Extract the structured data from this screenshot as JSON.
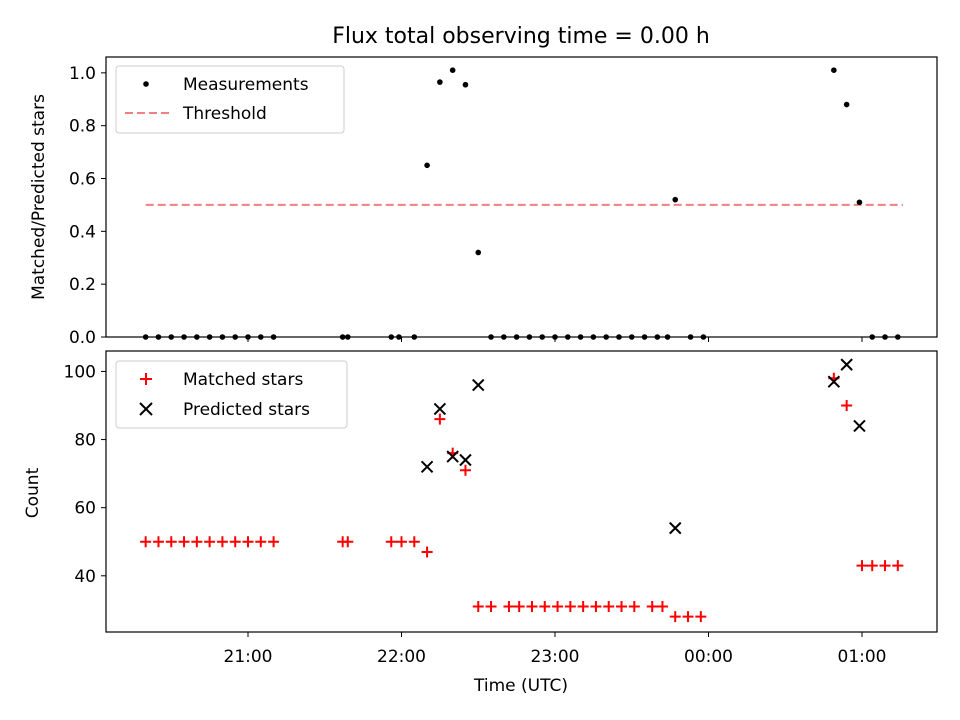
{
  "title": "Flux total observing time = 0.00 h",
  "colors": {
    "measurement": "#000000",
    "threshold": "#f08080",
    "matched": "#ff0000",
    "predicted": "#000000"
  },
  "chart_data": [
    {
      "type": "scatter",
      "ylabel": "Matched/Predicted stars",
      "ylim": [
        0,
        1.06
      ],
      "yticks": [
        "0.0",
        "0.2",
        "0.4",
        "0.6",
        "0.8",
        "1.0"
      ],
      "ytick_values": [
        0,
        0.2,
        0.4,
        0.6,
        0.8,
        1.0
      ],
      "legend": {
        "placement": "upper-left",
        "entries": [
          "Measurements",
          "Threshold"
        ]
      },
      "threshold": {
        "value": 0.5,
        "x_range": [
          "20:20",
          "01:16"
        ]
      },
      "series": [
        {
          "name": "Measurements",
          "points": [
            [
              "20:20",
              0
            ],
            [
              "20:25",
              0
            ],
            [
              "20:30",
              0
            ],
            [
              "20:35",
              0
            ],
            [
              "20:40",
              0
            ],
            [
              "20:45",
              0
            ],
            [
              "20:50",
              0
            ],
            [
              "20:55",
              0
            ],
            [
              "21:00",
              0
            ],
            [
              "21:05",
              0
            ],
            [
              "21:10",
              0
            ],
            [
              "21:37",
              0
            ],
            [
              "21:39",
              0
            ],
            [
              "21:56",
              0
            ],
            [
              "21:59",
              0
            ],
            [
              "22:05",
              0
            ],
            [
              "22:10",
              0.65
            ],
            [
              "22:15",
              0.965
            ],
            [
              "22:20",
              1.01
            ],
            [
              "22:25",
              0.955
            ],
            [
              "22:30",
              0.32
            ],
            [
              "22:35",
              0
            ],
            [
              "22:40",
              0
            ],
            [
              "22:45",
              0
            ],
            [
              "22:50",
              0
            ],
            [
              "22:55",
              0
            ],
            [
              "23:00",
              0
            ],
            [
              "23:05",
              0
            ],
            [
              "23:10",
              0
            ],
            [
              "23:15",
              0
            ],
            [
              "23:20",
              0
            ],
            [
              "23:25",
              0
            ],
            [
              "23:30",
              0
            ],
            [
              "23:35",
              0
            ],
            [
              "23:40",
              0
            ],
            [
              "23:44",
              0
            ],
            [
              "23:47",
              0.52
            ],
            [
              "23:53",
              0
            ],
            [
              "23:58",
              0
            ],
            [
              "00:49",
              1.01
            ],
            [
              "00:54",
              0.88
            ],
            [
              "00:59",
              0.51
            ],
            [
              "01:04",
              0
            ],
            [
              "01:09",
              0
            ],
            [
              "01:14",
              0
            ]
          ]
        }
      ]
    },
    {
      "type": "scatter",
      "xlabel": "Time (UTC)",
      "ylabel": "Count",
      "ylim": [
        23.5,
        106
      ],
      "yticks": [
        "40",
        "60",
        "80",
        "100"
      ],
      "ytick_values": [
        40,
        60,
        80,
        100
      ],
      "xticks": [
        "21:00",
        "22:00",
        "23:00",
        "00:00",
        "01:00"
      ],
      "xtick_values": [
        "21:00",
        "22:00",
        "23:00",
        "00:00",
        "01:00"
      ],
      "legend": {
        "placement": "upper-left",
        "entries": [
          "Matched stars",
          "Predicted stars"
        ]
      },
      "series": [
        {
          "name": "Matched stars",
          "marker": "plus",
          "points": [
            [
              "20:20",
              50
            ],
            [
              "20:25",
              50
            ],
            [
              "20:30",
              50
            ],
            [
              "20:35",
              50
            ],
            [
              "20:40",
              50
            ],
            [
              "20:45",
              50
            ],
            [
              "20:50",
              50
            ],
            [
              "20:55",
              50
            ],
            [
              "21:00",
              50
            ],
            [
              "21:05",
              50
            ],
            [
              "21:10",
              50
            ],
            [
              "21:37",
              50
            ],
            [
              "21:39",
              50
            ],
            [
              "21:56",
              50
            ],
            [
              "22:00",
              50
            ],
            [
              "22:05",
              50
            ],
            [
              "22:10",
              47
            ],
            [
              "22:15",
              86
            ],
            [
              "22:20",
              76
            ],
            [
              "22:25",
              71
            ],
            [
              "22:30",
              31
            ],
            [
              "22:35",
              31
            ],
            [
              "22:42",
              31
            ],
            [
              "22:46",
              31
            ],
            [
              "22:51",
              31
            ],
            [
              "22:56",
              31
            ],
            [
              "23:01",
              31
            ],
            [
              "23:06",
              31
            ],
            [
              "23:11",
              31
            ],
            [
              "23:16",
              31
            ],
            [
              "23:21",
              31
            ],
            [
              "23:26",
              31
            ],
            [
              "23:31",
              31
            ],
            [
              "23:38",
              31
            ],
            [
              "23:42",
              31
            ],
            [
              "23:47",
              28
            ],
            [
              "23:52",
              28
            ],
            [
              "23:57",
              28
            ],
            [
              "00:49",
              98
            ],
            [
              "00:54",
              90
            ],
            [
              "01:00",
              43
            ],
            [
              "01:04",
              43
            ],
            [
              "01:09",
              43
            ],
            [
              "01:14",
              43
            ]
          ]
        },
        {
          "name": "Predicted stars",
          "marker": "x",
          "points": [
            [
              "22:10",
              72
            ],
            [
              "22:15",
              89
            ],
            [
              "22:20",
              75
            ],
            [
              "22:25",
              74
            ],
            [
              "22:30",
              96
            ],
            [
              "23:47",
              54
            ],
            [
              "00:49",
              97
            ],
            [
              "00:54",
              102
            ],
            [
              "00:59",
              84
            ]
          ]
        }
      ]
    }
  ]
}
